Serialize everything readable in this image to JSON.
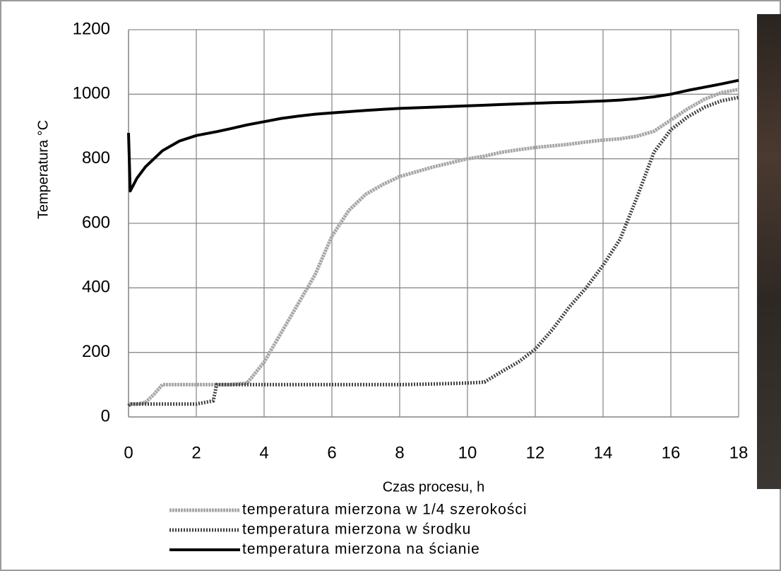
{
  "chart_data": {
    "type": "line",
    "xlabel": "Czas procesu, h",
    "ylabel": "Temperatura  °C",
    "x": [
      0,
      0.05,
      0.25,
      0.5,
      0.75,
      1,
      1.5,
      2,
      2.5,
      2.6,
      3,
      3.5,
      4,
      4.5,
      5,
      5.5,
      6,
      6.5,
      7,
      7.5,
      8,
      9,
      10,
      10.5,
      11,
      11.5,
      12,
      12.5,
      13,
      13.5,
      14,
      14.5,
      15,
      15.5,
      16,
      16.5,
      17,
      17.5,
      18
    ],
    "series": [
      {
        "name": "temperatura mierzona w 1/4 szerokości",
        "color": "#a6a6a6",
        "values": [
          40,
          40,
          40,
          45,
          70,
          100,
          100,
          100,
          100,
          100,
          100,
          105,
          170,
          260,
          350,
          440,
          560,
          640,
          690,
          720,
          745,
          775,
          800,
          808,
          820,
          828,
          835,
          840,
          845,
          852,
          858,
          862,
          870,
          885,
          920,
          955,
          985,
          1005,
          1015
        ]
      },
      {
        "name": "temperatura mierzona w środku",
        "color": "#404040",
        "values": [
          35,
          40,
          40,
          40,
          40,
          40,
          40,
          40,
          50,
          100,
          100,
          100,
          100,
          100,
          100,
          100,
          100,
          100,
          100,
          100,
          100,
          102,
          105,
          108,
          140,
          170,
          210,
          270,
          340,
          400,
          470,
          550,
          680,
          820,
          890,
          930,
          960,
          980,
          990
        ]
      },
      {
        "name": "temperatura mierzona na ścianie",
        "color": "#000000",
        "values": [
          880,
          700,
          740,
          775,
          800,
          825,
          855,
          872,
          882,
          884,
          893,
          905,
          915,
          925,
          932,
          938,
          942,
          946,
          950,
          953,
          956,
          960,
          964,
          966,
          968,
          970,
          972,
          974,
          975,
          977,
          979,
          982,
          986,
          992,
          1000,
          1012,
          1022,
          1032,
          1043
        ]
      }
    ],
    "xlim": [
      0,
      18
    ],
    "xticks": [
      0,
      2,
      4,
      6,
      8,
      10,
      12,
      14,
      16,
      18
    ],
    "ylim": [
      0,
      1200
    ],
    "yticks": [
      0,
      200,
      400,
      600,
      800,
      1000,
      1200
    ],
    "grid": true
  }
}
